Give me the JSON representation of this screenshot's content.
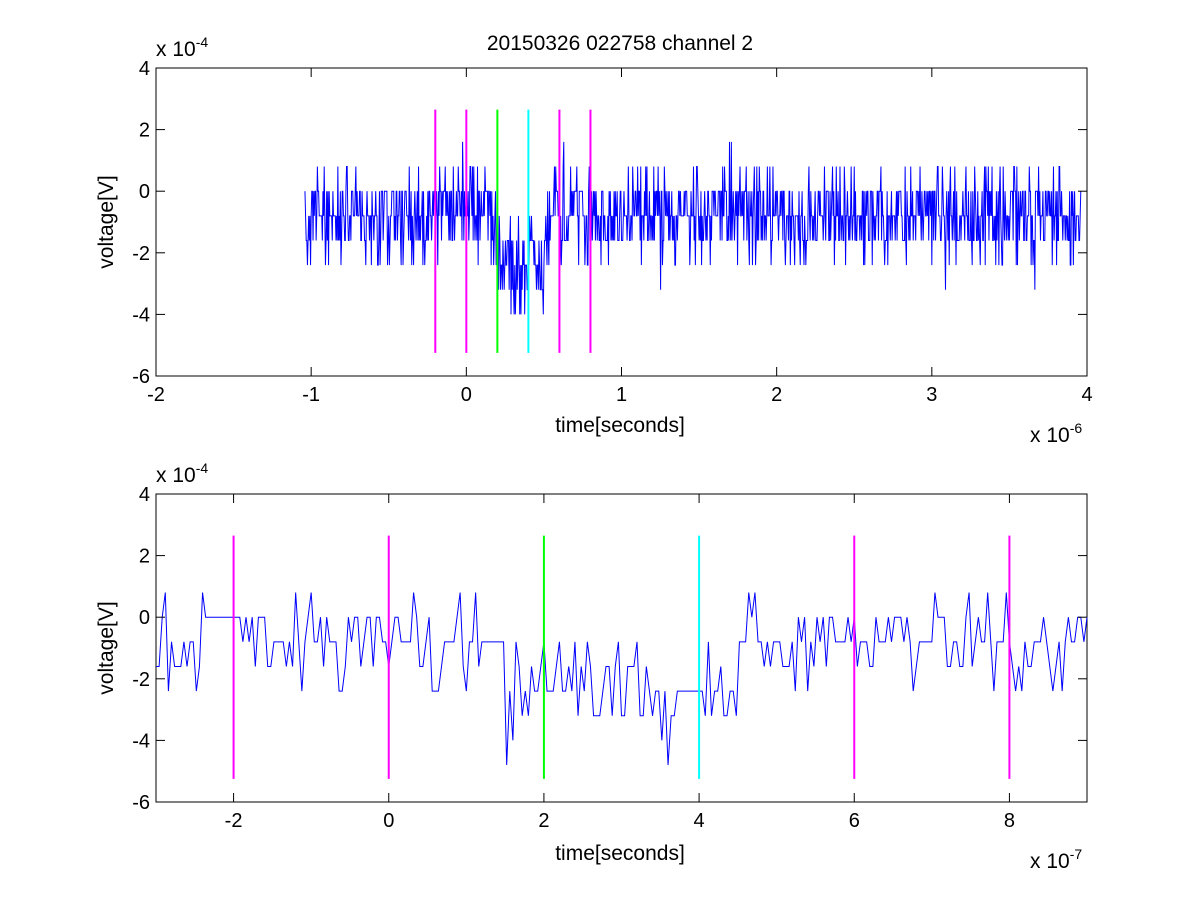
{
  "figure": {
    "title": "20150326 022758 channel 2"
  },
  "chart_data": [
    {
      "type": "line",
      "title": "20150326 022758 channel 2",
      "xlabel": "time[seconds]",
      "ylabel": "voltage[V]",
      "x_exponent_label": "x 10",
      "x_exponent": "-6",
      "y_exponent_label": "x 10",
      "y_exponent": "-4",
      "xlim": [
        -2e-06,
        4e-06
      ],
      "ylim": [
        -0.0006,
        0.0004
      ],
      "x_ticks": [
        -2e-06,
        -1e-06,
        0,
        1e-06,
        2e-06,
        3e-06,
        4e-06
      ],
      "x_tick_labels": [
        "-2",
        "-1",
        "0",
        "1",
        "2",
        "3",
        "4"
      ],
      "y_ticks": [
        -0.0006,
        -0.0004,
        -0.0002,
        0,
        0.0002,
        0.0004
      ],
      "y_tick_labels": [
        "-6",
        "-4",
        "-2",
        "0",
        "2",
        "4"
      ],
      "grid": false,
      "series": [
        {
          "color": "#0000ff",
          "x_start": -1.04e-06,
          "x_end": 3.96e-06,
          "sample_step": 4e-09,
          "y_levels": [
            -0.0004,
            -0.00032,
            -0.00024,
            -0.00016,
            -8e-05,
            0,
            8e-05,
            0.00016,
            0.00024
          ],
          "baseline_mean": -8e-05,
          "dip_region": [
            2e-07,
            5e-07
          ],
          "dip_mean": -0.00022
        }
      ],
      "markers": [
        {
          "x": -2e-07,
          "color": "#ff00ff",
          "y_range": [
            -0.000525,
            0.000265
          ]
        },
        {
          "x": 0,
          "color": "#ff00ff",
          "y_range": [
            -0.000525,
            0.000265
          ]
        },
        {
          "x": 2e-07,
          "color": "#00ff00",
          "y_range": [
            -0.000525,
            0.000265
          ]
        },
        {
          "x": 4e-07,
          "color": "#00ffff",
          "y_range": [
            -0.000525,
            0.000265
          ]
        },
        {
          "x": 6e-07,
          "color": "#ff00ff",
          "y_range": [
            -0.000525,
            0.000265
          ]
        },
        {
          "x": 8e-07,
          "color": "#ff00ff",
          "y_range": [
            -0.000525,
            0.000265
          ]
        }
      ]
    },
    {
      "type": "line",
      "title": "",
      "xlabel": "time[seconds]",
      "ylabel": "voltage[V]",
      "x_exponent_label": "x 10",
      "x_exponent": "-7",
      "y_exponent_label": "x 10",
      "y_exponent": "-4",
      "xlim": [
        -3e-07,
        9e-07
      ],
      "ylim": [
        -0.0006,
        0.0004
      ],
      "x_ticks": [
        -2e-07,
        0,
        2e-07,
        4e-07,
        6e-07,
        8e-07
      ],
      "x_tick_labels": [
        "-2",
        "0",
        "2",
        "4",
        "6",
        "8"
      ],
      "y_ticks": [
        -0.0006,
        -0.0004,
        -0.0002,
        0,
        0.0002,
        0.0004
      ],
      "y_tick_labels": [
        "-6",
        "-4",
        "-2",
        "0",
        "2",
        "4"
      ],
      "grid": false,
      "series": [
        {
          "color": "#0000ff",
          "x_start": -3e-07,
          "x_end": 9e-07,
          "sample_step": 4e-09,
          "y_levels": [
            -0.00048,
            -0.0004,
            -0.00032,
            -0.00024,
            -0.00016,
            -8e-05,
            0,
            8e-05,
            0.00016,
            0.00024
          ],
          "baseline_mean": -8e-05,
          "dip_region": [
            1.5e-07,
            4.5e-07
          ],
          "dip_mean": -0.00024,
          "flat_segments": [
            {
              "x": [
                -2.4e-07,
                -2e-07
              ],
              "y": 0
            },
            {
              "x": [
                3.7e-07,
                4e-07
              ],
              "y": -0.00024
            }
          ]
        }
      ],
      "markers": [
        {
          "x": -2e-07,
          "color": "#ff00ff",
          "y_range": [
            -0.000525,
            0.000265
          ]
        },
        {
          "x": 0,
          "color": "#ff00ff",
          "y_range": [
            -0.000525,
            0.000265
          ]
        },
        {
          "x": 2e-07,
          "color": "#00ff00",
          "y_range": [
            -0.000525,
            0.000265
          ]
        },
        {
          "x": 4e-07,
          "color": "#00ffff",
          "y_range": [
            -0.000525,
            0.000265
          ]
        },
        {
          "x": 6e-07,
          "color": "#ff00ff",
          "y_range": [
            -0.000525,
            0.000265
          ]
        },
        {
          "x": 8e-07,
          "color": "#ff00ff",
          "y_range": [
            -0.000525,
            0.000265
          ]
        }
      ]
    }
  ]
}
